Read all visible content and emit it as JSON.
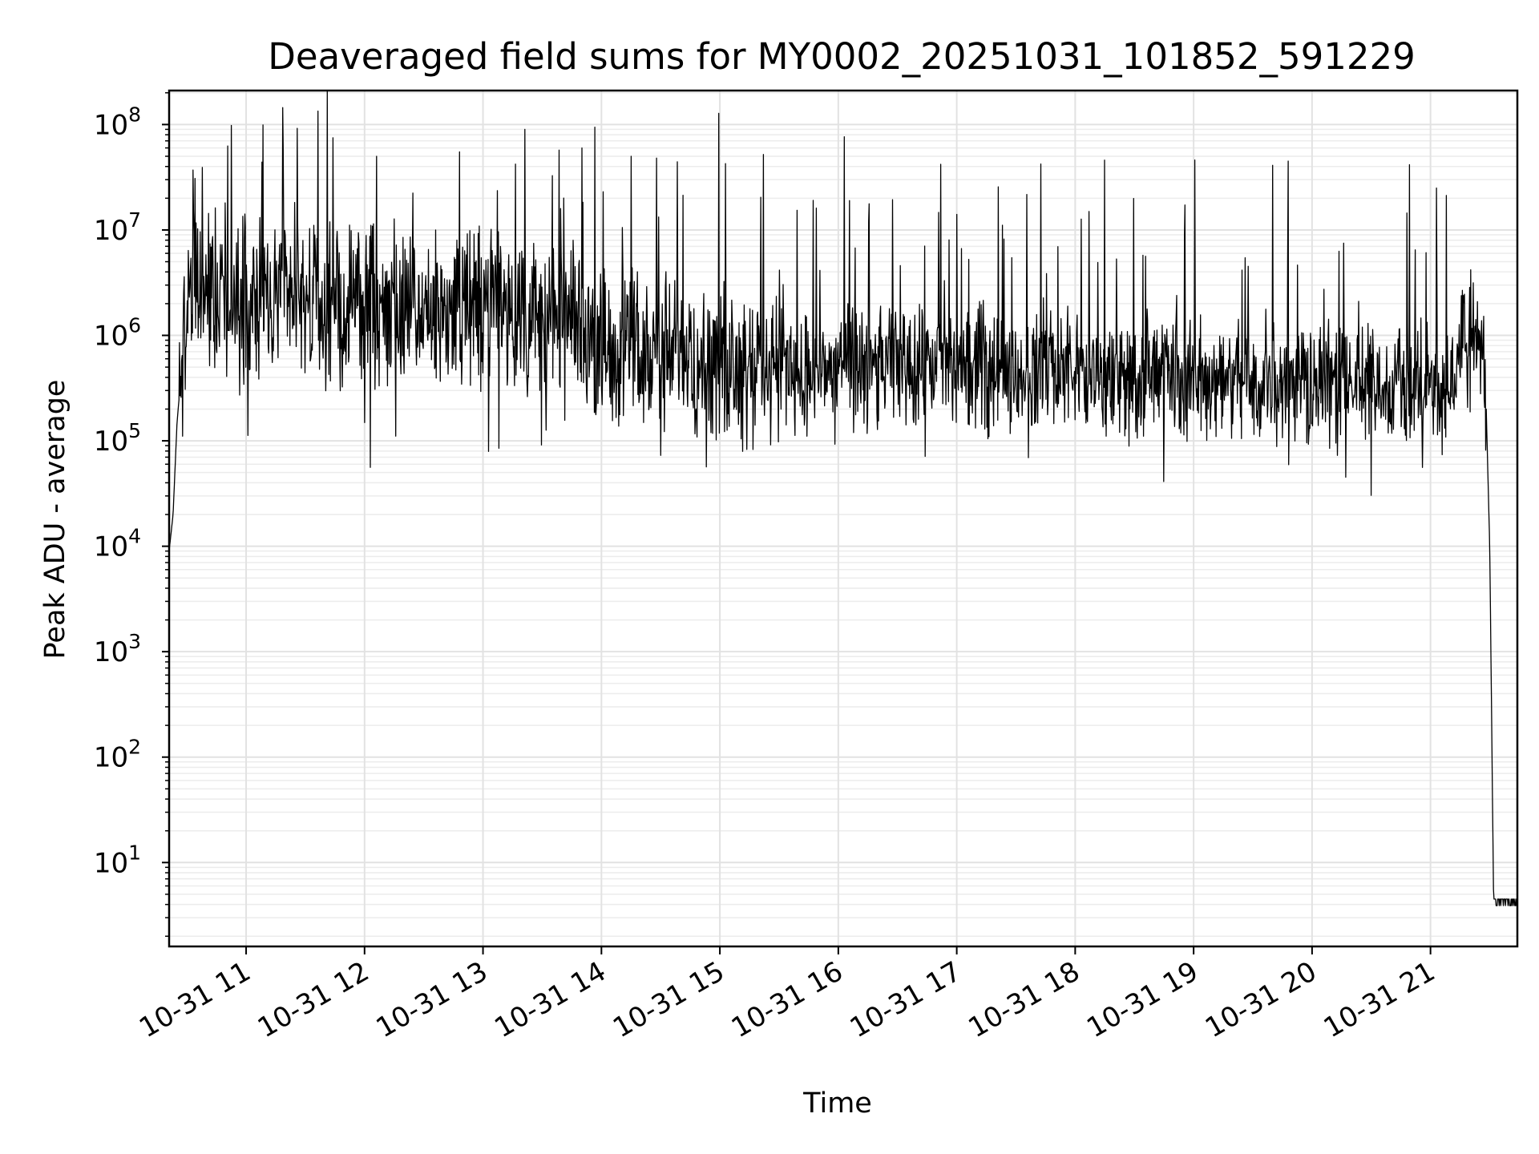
{
  "chart_data": {
    "type": "line",
    "title": "Deaveraged field sums for MY0002_20251031_101852_591229",
    "xlabel": "Time",
    "ylabel": "Peak ADU - average",
    "yscale": "log",
    "xlim": [
      "2025-10-31 10:21",
      "2025-10-31 21:44"
    ],
    "ylim": [
      1.6,
      210000000.0
    ],
    "xticks": [
      {
        "t": "2025-10-31 11:00",
        "label": "10-31 11"
      },
      {
        "t": "2025-10-31 12:00",
        "label": "10-31 12"
      },
      {
        "t": "2025-10-31 13:00",
        "label": "10-31 13"
      },
      {
        "t": "2025-10-31 14:00",
        "label": "10-31 14"
      },
      {
        "t": "2025-10-31 15:00",
        "label": "10-31 15"
      },
      {
        "t": "2025-10-31 16:00",
        "label": "10-31 16"
      },
      {
        "t": "2025-10-31 17:00",
        "label": "10-31 17"
      },
      {
        "t": "2025-10-31 18:00",
        "label": "10-31 18"
      },
      {
        "t": "2025-10-31 19:00",
        "label": "10-31 19"
      },
      {
        "t": "2025-10-31 20:00",
        "label": "10-31 20"
      },
      {
        "t": "2025-10-31 21:00",
        "label": "10-31 21"
      }
    ],
    "yticks": [
      {
        "value": 10,
        "base": "10",
        "exp": "1"
      },
      {
        "value": 100,
        "base": "10",
        "exp": "2"
      },
      {
        "value": 1000,
        "base": "10",
        "exp": "3"
      },
      {
        "value": 10000,
        "base": "10",
        "exp": "4"
      },
      {
        "value": 100000,
        "base": "10",
        "exp": "5"
      },
      {
        "value": 1000000,
        "base": "10",
        "exp": "6"
      },
      {
        "value": 10000000,
        "base": "10",
        "exp": "7"
      },
      {
        "value": 100000000,
        "base": "10",
        "exp": "8"
      }
    ],
    "grid": true,
    "line_color": "#000000",
    "series": [
      {
        "points": [
          [
            "2025-10-31 10:21",
            9000
          ],
          [
            "2025-10-31 10:23",
            20000
          ],
          [
            "2025-10-31 10:25",
            150000
          ],
          [
            "2025-10-31 10:27",
            400000
          ],
          [
            "2025-10-31 10:30",
            1800000
          ],
          [
            "2025-10-31 10:35",
            2500000
          ],
          [
            "2025-10-31 10:45",
            3000000
          ],
          [
            "2025-10-31 11:00",
            2000000
          ],
          [
            "2025-10-31 11:30",
            2000000
          ],
          [
            "2025-10-31 12:00",
            1800000
          ],
          [
            "2025-10-31 12:30",
            1500000
          ],
          [
            "2025-10-31 13:00",
            2000000
          ],
          [
            "2025-10-31 13:30",
            1500000
          ],
          [
            "2025-10-31 14:00",
            900000
          ],
          [
            "2025-10-31 14:30",
            700000
          ],
          [
            "2025-10-31 15:00",
            600000
          ],
          [
            "2025-10-31 15:30",
            500000
          ],
          [
            "2025-10-31 16:00",
            500000
          ],
          [
            "2025-10-31 16:30",
            500000
          ],
          [
            "2025-10-31 17:00",
            500000
          ],
          [
            "2025-10-31 17:30",
            450000
          ],
          [
            "2025-10-31 18:00",
            450000
          ],
          [
            "2025-10-31 18:30",
            400000
          ],
          [
            "2025-10-31 19:00",
            400000
          ],
          [
            "2025-10-31 19:30",
            350000
          ],
          [
            "2025-10-31 20:00",
            350000
          ],
          [
            "2025-10-31 20:30",
            350000
          ],
          [
            "2025-10-31 21:00",
            350000
          ],
          [
            "2025-10-31 21:10",
            300000
          ],
          [
            "2025-10-31 21:15",
            900000
          ],
          [
            "2025-10-31 21:20",
            1300000
          ],
          [
            "2025-10-31 21:25",
            1200000
          ],
          [
            "2025-10-31 21:28",
            300000
          ],
          [
            "2025-10-31 21:30",
            10000
          ],
          [
            "2025-10-31 21:32",
            4
          ],
          [
            "2025-10-31 21:44",
            4
          ]
        ],
        "spike_peaks": [
          [
            "2025-10-31 10:33",
            37000000
          ],
          [
            "2025-10-31 11:08",
            44000000
          ],
          [
            "2025-10-31 11:26",
            92000000
          ],
          [
            "2025-10-31 12:06",
            50000000
          ],
          [
            "2025-10-31 12:48",
            55000000
          ],
          [
            "2025-10-31 13:50",
            60000000
          ],
          [
            "2025-10-31 14:15",
            50000000
          ],
          [
            "2025-10-31 15:22",
            52000000
          ],
          [
            "2025-10-31 16:52",
            42000000
          ],
          [
            "2025-10-31 18:15",
            46000000
          ],
          [
            "2025-10-31 19:48",
            45000000
          ],
          [
            "2025-10-31 19:40",
            41000000
          ],
          [
            "2025-10-31 21:03",
            25000000
          ]
        ]
      }
    ]
  }
}
